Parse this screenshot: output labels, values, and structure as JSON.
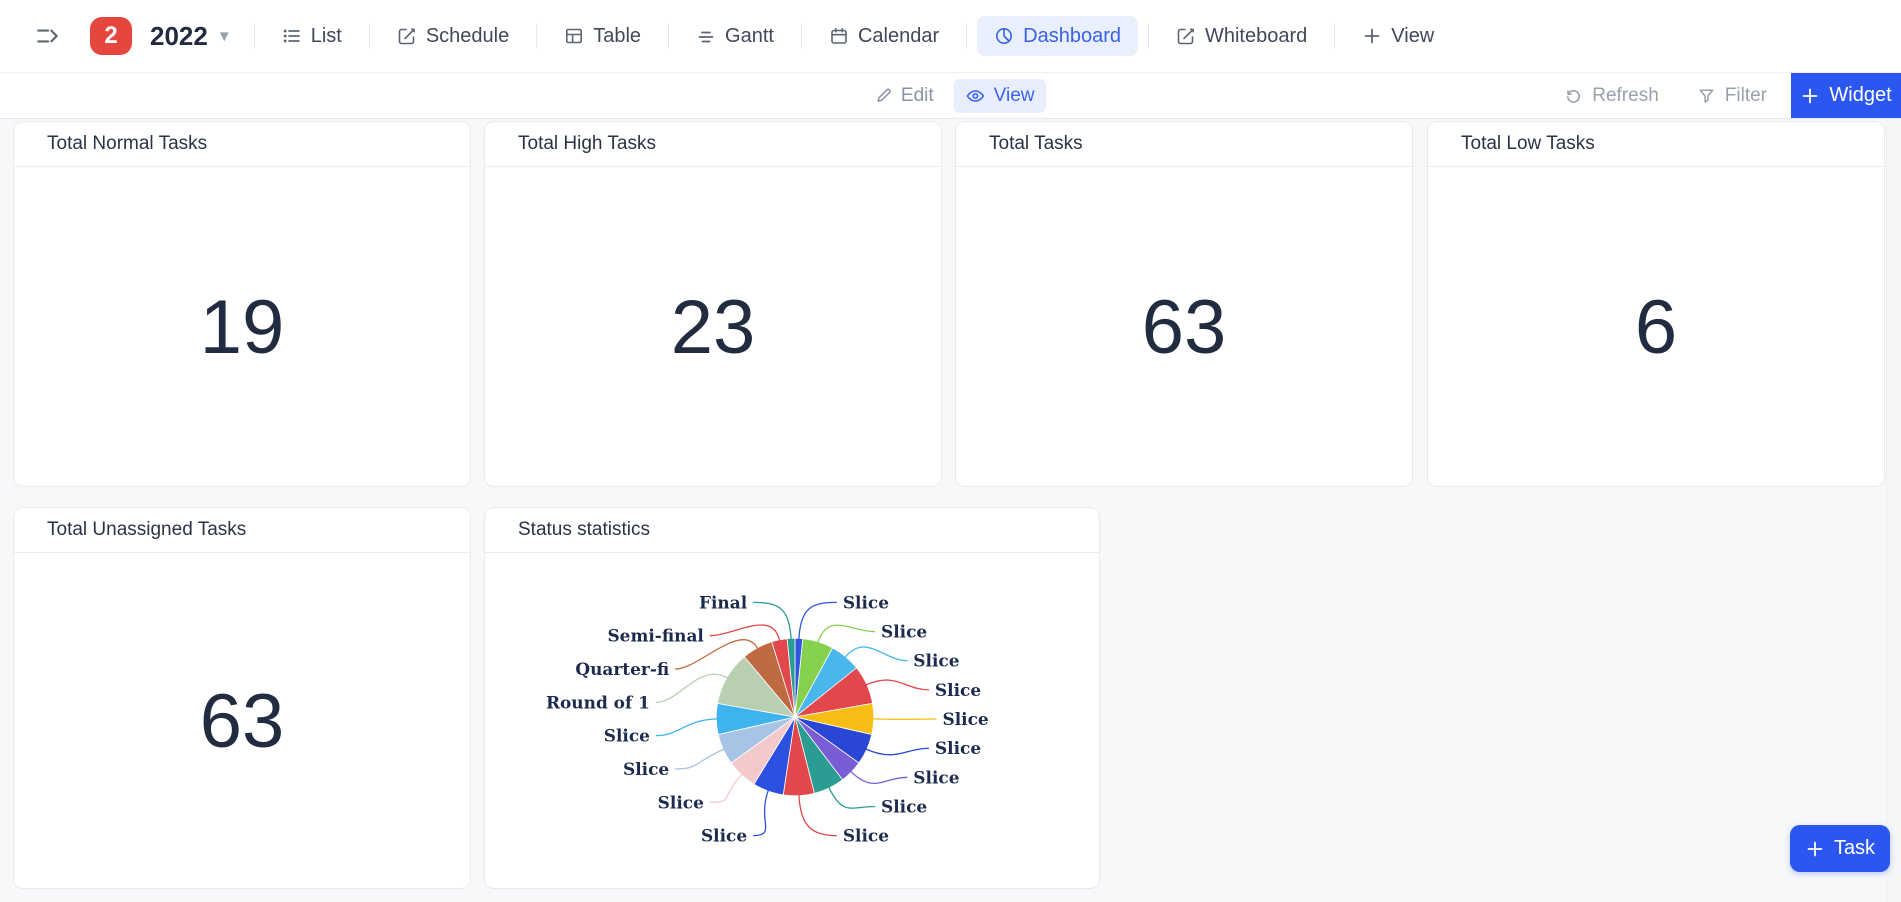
{
  "header": {
    "badge_count": "2",
    "space_name": "2022",
    "tabs": [
      {
        "label": "List"
      },
      {
        "label": "Schedule"
      },
      {
        "label": "Table"
      },
      {
        "label": "Gantt"
      },
      {
        "label": "Calendar"
      },
      {
        "label": "Dashboard",
        "active": true
      },
      {
        "label": "Whiteboard"
      },
      {
        "label": "View",
        "add": true
      }
    ]
  },
  "toolbar": {
    "edit_label": "Edit",
    "view_label": "View",
    "refresh_label": "Refresh",
    "filter_label": "Filter",
    "widget_label": "Widget"
  },
  "cards": [
    {
      "title": "Total Normal Tasks",
      "value": "19"
    },
    {
      "title": "Total High Tasks",
      "value": "23"
    },
    {
      "title": "Total Tasks",
      "value": "63"
    },
    {
      "title": "Total Low Tasks",
      "value": "6"
    },
    {
      "title": "Total Unassigned Tasks",
      "value": "63"
    },
    {
      "title": "Status statistics",
      "type": "pie"
    }
  ],
  "chart_data": {
    "type": "pie",
    "title": "Status statistics",
    "total": 63,
    "legend_position": "none",
    "labels": "outside-with-leader-lines",
    "slices": [
      {
        "label": "Slice",
        "value": 1,
        "color": "#3056dd"
      },
      {
        "label": "Slice",
        "value": 4,
        "color": "#85d14e"
      },
      {
        "label": "Slice",
        "value": 4,
        "color": "#49b7ec"
      },
      {
        "label": "Slice",
        "value": 5,
        "color": "#e2474b"
      },
      {
        "label": "Slice",
        "value": 4,
        "color": "#f6be14"
      },
      {
        "label": "Slice",
        "value": 4,
        "color": "#2a46d4"
      },
      {
        "label": "Slice",
        "value": 3,
        "color": "#7a5cd6"
      },
      {
        "label": "Slice",
        "value": 4,
        "color": "#2a9c92"
      },
      {
        "label": "Slice",
        "value": 4,
        "color": "#e2474b"
      },
      {
        "label": "Slice",
        "value": 4,
        "color": "#2c50e0"
      },
      {
        "label": "Slice",
        "value": 4,
        "color": "#f4c9ca"
      },
      {
        "label": "Slice",
        "value": 4,
        "color": "#a7c3e5"
      },
      {
        "label": "Slice",
        "value": 4,
        "color": "#3fb3ee"
      },
      {
        "label": "Round of 1",
        "value": 7,
        "color": "#b9cfb2"
      },
      {
        "label": "Quarter-fi",
        "value": 4,
        "color": "#bf6b41"
      },
      {
        "label": "Semi-final",
        "value": 2,
        "color": "#e2474b"
      },
      {
        "label": "Final",
        "value": 1,
        "color": "#2a9c92"
      }
    ]
  },
  "task_button": {
    "label": "Task"
  },
  "colors": {
    "accent_blue": "#2b57f0",
    "tab_active_blue": "#3a62e6",
    "badge_red": "#e5473f",
    "page_bg": "#f7f8fa"
  }
}
